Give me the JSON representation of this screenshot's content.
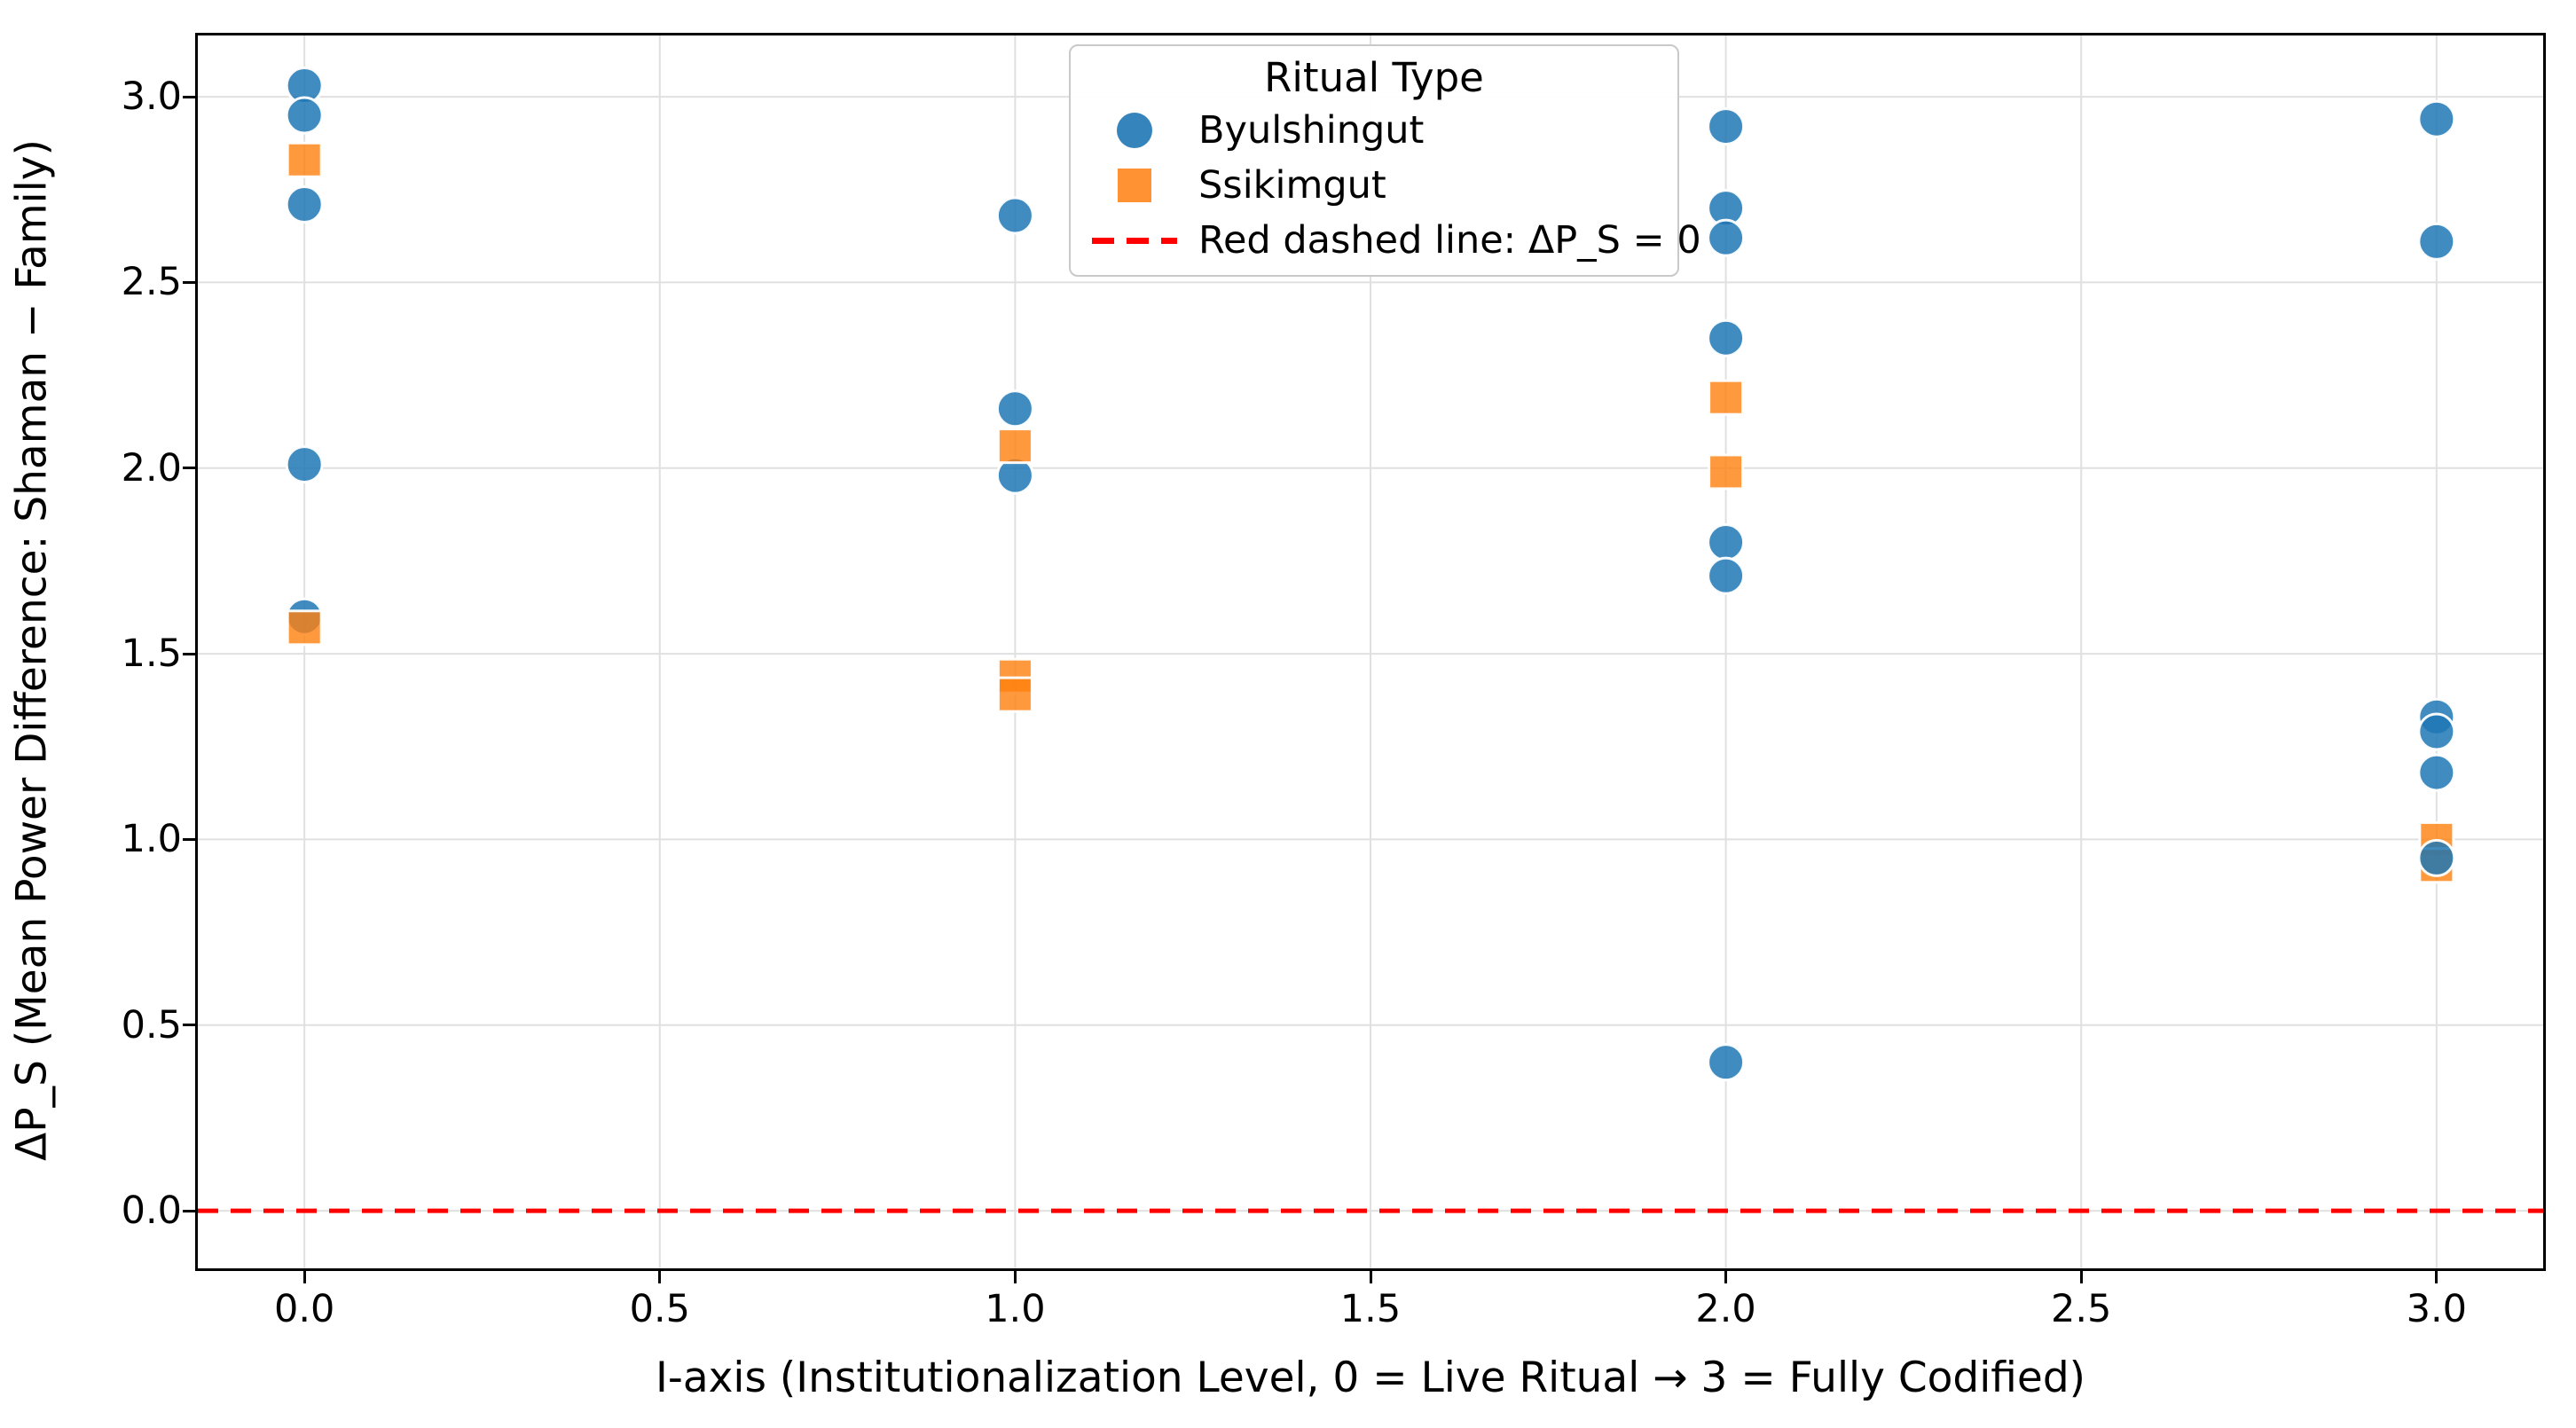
{
  "chart_data": {
    "type": "scatter",
    "title": "",
    "xlabel": "I-axis (Institutionalization Level, 0 = Live Ritual → 3 = Fully Codified)",
    "ylabel": "ΔP_S (Mean Power Difference: Shaman − Family)",
    "xlim": [
      -0.15,
      3.15
    ],
    "ylim": [
      -0.155,
      3.165
    ],
    "grid": true,
    "grid_color": "#e0e0e0",
    "xticks": {
      "values": [
        0,
        0.5,
        1,
        1.5,
        2,
        2.5,
        3
      ],
      "labels": [
        "0.0",
        "0.5",
        "1.0",
        "1.5",
        "2.0",
        "2.5",
        "3.0"
      ]
    },
    "yticks": {
      "values": [
        3,
        2.5,
        2,
        1.5,
        1,
        0.5,
        0
      ],
      "labels": [
        "3.0",
        "2.5",
        "2.0",
        "1.5",
        "1.0",
        "0.5",
        "0.0"
      ]
    },
    "series": [
      {
        "name": "Byulshingut",
        "marker": "circle",
        "color": "#1f77b4",
        "alpha": 0.85,
        "points": [
          [
            0,
            3.03
          ],
          [
            0,
            2.95
          ],
          [
            0,
            2.71
          ],
          [
            0,
            2.01
          ],
          [
            0,
            1.6
          ],
          [
            1,
            2.68
          ],
          [
            1,
            2.16
          ],
          [
            1,
            1.98
          ],
          [
            2,
            2.92
          ],
          [
            2,
            2.7
          ],
          [
            2,
            2.62
          ],
          [
            2,
            2.35
          ],
          [
            2,
            1.8
          ],
          [
            2,
            1.71
          ],
          [
            2,
            0.4
          ],
          [
            3,
            2.94
          ],
          [
            3,
            2.61
          ],
          [
            3,
            1.33
          ],
          [
            3,
            1.29
          ],
          [
            3,
            1.18
          ],
          [
            3,
            0.95,
            9
          ]
        ]
      },
      {
        "name": "Ssikimgut",
        "marker": "square",
        "color": "#ff7f0e",
        "alpha": 0.8,
        "points": [
          [
            0,
            2.83
          ],
          [
            0,
            1.57
          ],
          [
            1,
            2.06
          ],
          [
            1,
            1.44
          ],
          [
            1,
            1.39
          ],
          [
            2,
            2.19
          ],
          [
            2,
            1.99
          ],
          [
            3,
            1.0
          ],
          [
            3,
            0.93
          ]
        ]
      }
    ],
    "reference_line": {
      "y": 0,
      "color": "#ff0000",
      "style": "dashed"
    },
    "legend": {
      "title": "Ritual Type",
      "position": "upper center",
      "entries": [
        {
          "label": "Byulshingut",
          "swatch": "circle",
          "color": "#1f77b4"
        },
        {
          "label": "Ssikimgut",
          "swatch": "square",
          "color": "#ff7f0e"
        },
        {
          "label": "Red dashed line: ΔP_S = 0",
          "swatch": "dashed-line",
          "color": "#ff0000"
        }
      ]
    }
  }
}
